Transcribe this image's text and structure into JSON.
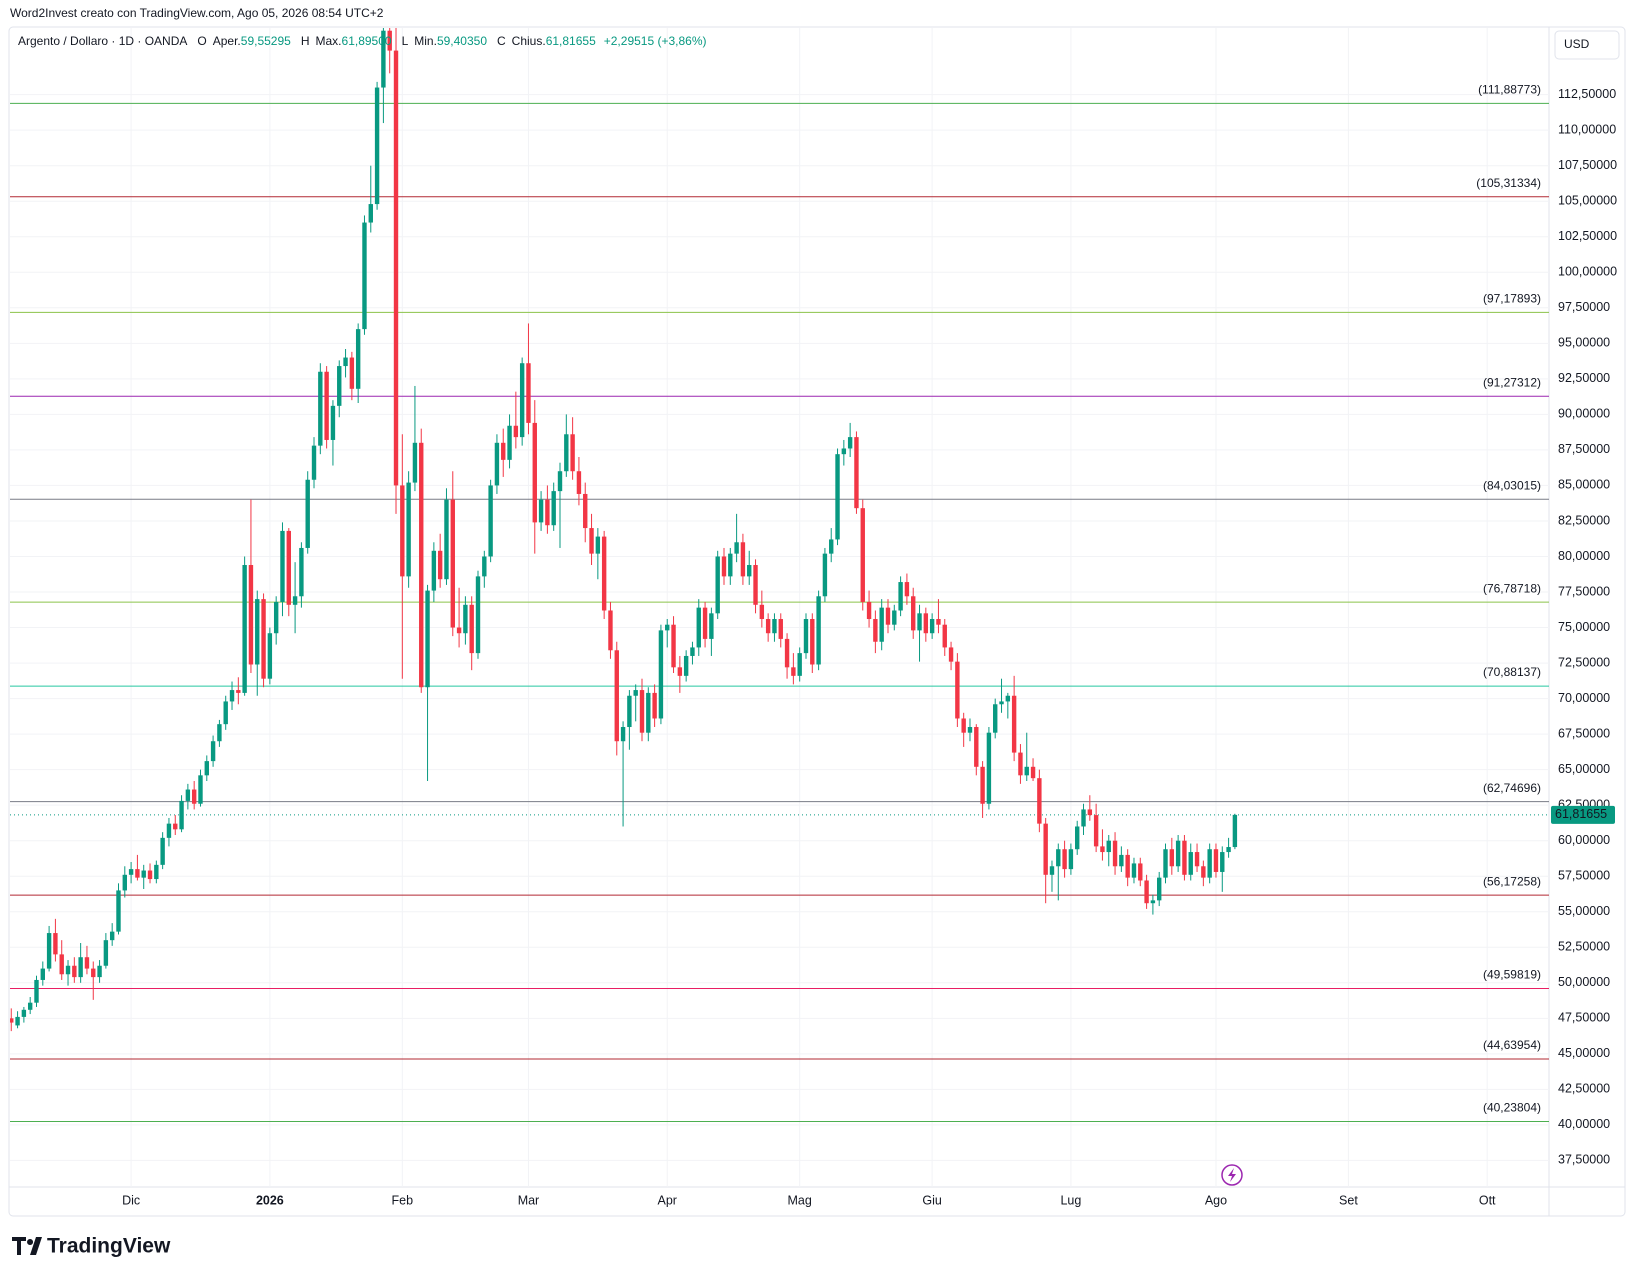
{
  "header": {
    "credit": "Word2Invest creato con TradingView.com, Ago 05, 2026 08:54 UTC+2",
    "symbol": "Argento / Dollaro · 1D · OANDA",
    "items": [
      {
        "key": "O",
        "name": "Aper.",
        "value": "59,55295"
      },
      {
        "key": "H",
        "name": "Max.",
        "value": "61,89500"
      },
      {
        "key": "L",
        "name": "Min.",
        "value": "59,40350"
      },
      {
        "key": "C",
        "name": "Chius.",
        "value": "61,81655"
      }
    ],
    "change": "+2,29515 (+3,86%)",
    "currency": "USD",
    "brand": "TradingView"
  },
  "chart_data": {
    "type": "candlestick",
    "up_color": "#089981",
    "down_color": "#f23645",
    "grid": true,
    "xlim": [
      -0.2,
      243.8
    ],
    "ylim": [
      35.63,
      117.19
    ],
    "xticks": [
      {
        "value": 19,
        "label": "Dic"
      },
      {
        "value": 41,
        "label": "2026"
      },
      {
        "value": 62,
        "label": "Feb"
      },
      {
        "value": 82,
        "label": "Mar"
      },
      {
        "value": 104,
        "label": "Apr"
      },
      {
        "value": 125,
        "label": "Mag"
      },
      {
        "value": 146,
        "label": "Giu"
      },
      {
        "value": 168,
        "label": "Lug"
      },
      {
        "value": 191,
        "label": "Ago"
      },
      {
        "value": 212,
        "label": "Set"
      },
      {
        "value": 234,
        "label": "Ott"
      }
    ],
    "yticks": [
      {
        "value": 37.5,
        "label": "37,50000"
      },
      {
        "value": 40,
        "label": "40,00000"
      },
      {
        "value": 42.5,
        "label": "42,50000"
      },
      {
        "value": 45,
        "label": "45,00000"
      },
      {
        "value": 47.5,
        "label": "47,50000"
      },
      {
        "value": 50,
        "label": "50,00000"
      },
      {
        "value": 52.5,
        "label": "52,50000"
      },
      {
        "value": 55,
        "label": "55,00000"
      },
      {
        "value": 57.5,
        "label": "57,50000"
      },
      {
        "value": 60,
        "label": "60,00000"
      },
      {
        "value": 62.5,
        "label": "62,50000"
      },
      {
        "value": 65,
        "label": "65,00000"
      },
      {
        "value": 67.5,
        "label": "67,50000"
      },
      {
        "value": 70,
        "label": "70,00000"
      },
      {
        "value": 72.5,
        "label": "72,50000"
      },
      {
        "value": 75,
        "label": "75,00000"
      },
      {
        "value": 77.5,
        "label": "77,50000"
      },
      {
        "value": 80,
        "label": "80,00000"
      },
      {
        "value": 82.5,
        "label": "82,50000"
      },
      {
        "value": 85,
        "label": "85,00000"
      },
      {
        "value": 87.5,
        "label": "87,50000"
      },
      {
        "value": 90,
        "label": "90,00000"
      },
      {
        "value": 92.5,
        "label": "92,50000"
      },
      {
        "value": 95,
        "label": "95,00000"
      },
      {
        "value": 97.5,
        "label": "97,50000"
      },
      {
        "value": 100,
        "label": "100,00000"
      },
      {
        "value": 102.5,
        "label": "102,50000"
      },
      {
        "value": 105,
        "label": "105,00000"
      },
      {
        "value": 107.5,
        "label": "107,50000"
      },
      {
        "value": 110,
        "label": "110,00000"
      },
      {
        "value": 112.5,
        "label": "112,50000"
      }
    ],
    "levels": [
      {
        "value": 111.88773,
        "label": "(111,88773)",
        "color": "#4caf50"
      },
      {
        "value": 105.31334,
        "label": "(105,31334)",
        "color": "#b22833"
      },
      {
        "value": 97.17893,
        "label": "(97,17893)",
        "color": "#8bc34a"
      },
      {
        "value": 91.27312,
        "label": "(91,27312)",
        "color": "#9c27b0"
      },
      {
        "value": 84.03015,
        "label": "(84,03015)",
        "color": "#787b86"
      },
      {
        "value": 76.78718,
        "label": "(76,78718)",
        "color": "#8bc34a"
      },
      {
        "value": 70.88137,
        "label": "(70,88137)",
        "color": "#26c6a0"
      },
      {
        "value": 62.74696,
        "label": "(62,74696)",
        "color": "#787b86"
      },
      {
        "value": 56.17258,
        "label": "(56,17258)",
        "color": "#b22833"
      },
      {
        "value": 49.59819,
        "label": "(49,59819)",
        "color": "#e91e63"
      },
      {
        "value": 44.63954,
        "label": "(44,63954)",
        "color": "#b22833"
      },
      {
        "value": 40.23804,
        "label": "(40,23804)",
        "color": "#4caf50"
      }
    ],
    "last_price": {
      "value": 61.81655,
      "label": "61,81655",
      "color": "#089981"
    },
    "candles": [
      [
        47.5,
        48.2,
        46.6,
        47.2
      ],
      [
        47.0,
        48.0,
        46.8,
        47.6
      ],
      [
        47.6,
        48.3,
        47.2,
        48.1
      ],
      [
        48.1,
        49.0,
        47.8,
        48.6
      ],
      [
        48.6,
        50.5,
        48.3,
        50.2
      ],
      [
        50.2,
        51.5,
        49.8,
        51.0
      ],
      [
        51.0,
        54.0,
        50.8,
        53.5
      ],
      [
        53.5,
        54.5,
        51.5,
        52.0
      ],
      [
        52.0,
        53.0,
        50.2,
        50.6
      ],
      [
        50.6,
        51.6,
        49.8,
        51.2
      ],
      [
        51.2,
        51.8,
        50.0,
        50.4
      ],
      [
        50.4,
        52.8,
        50.0,
        51.8
      ],
      [
        51.8,
        52.6,
        50.6,
        51.0
      ],
      [
        51.0,
        51.5,
        48.8,
        50.4
      ],
      [
        50.4,
        51.6,
        50.0,
        51.2
      ],
      [
        51.2,
        53.5,
        51.0,
        53.0
      ],
      [
        53.0,
        54.2,
        52.6,
        53.6
      ],
      [
        53.6,
        57.0,
        53.4,
        56.5
      ],
      [
        56.5,
        58.2,
        56.0,
        57.6
      ],
      [
        57.6,
        58.5,
        57.0,
        58.0
      ],
      [
        58.0,
        59.0,
        57.2,
        57.4
      ],
      [
        57.4,
        58.3,
        56.6,
        57.9
      ],
      [
        57.9,
        58.4,
        57.0,
        57.3
      ],
      [
        57.3,
        58.6,
        57.0,
        58.3
      ],
      [
        58.3,
        60.6,
        58.0,
        60.2
      ],
      [
        60.2,
        61.6,
        59.6,
        61.2
      ],
      [
        61.2,
        61.8,
        60.4,
        60.8
      ],
      [
        60.8,
        63.2,
        60.6,
        62.8
      ],
      [
        62.8,
        64.0,
        62.2,
        63.6
      ],
      [
        63.6,
        64.2,
        62.2,
        62.6
      ],
      [
        62.6,
        65.0,
        62.4,
        64.6
      ],
      [
        64.6,
        66.0,
        64.2,
        65.6
      ],
      [
        65.6,
        67.4,
        65.2,
        67.0
      ],
      [
        67.0,
        68.5,
        66.6,
        68.2
      ],
      [
        68.2,
        70.2,
        67.8,
        69.8
      ],
      [
        69.8,
        71.2,
        69.2,
        70.6
      ],
      [
        70.6,
        71.5,
        69.6,
        70.4
      ],
      [
        70.4,
        80.0,
        70.2,
        79.4
      ],
      [
        79.4,
        84.0,
        71.8,
        72.4
      ],
      [
        72.4,
        77.6,
        70.2,
        77.0
      ],
      [
        77.0,
        77.4,
        70.8,
        71.4
      ],
      [
        71.4,
        75.0,
        71.0,
        74.6
      ],
      [
        74.6,
        77.2,
        73.8,
        76.8
      ],
      [
        76.8,
        82.4,
        75.8,
        81.8
      ],
      [
        81.8,
        82.0,
        75.8,
        76.6
      ],
      [
        76.6,
        79.6,
        74.6,
        77.2
      ],
      [
        77.2,
        81.0,
        76.4,
        80.6
      ],
      [
        80.6,
        86.0,
        80.2,
        85.4
      ],
      [
        85.4,
        88.4,
        84.8,
        87.8
      ],
      [
        87.8,
        93.6,
        87.2,
        93.0
      ],
      [
        93.0,
        93.4,
        87.6,
        88.2
      ],
      [
        88.2,
        91.0,
        86.4,
        90.6
      ],
      [
        90.6,
        93.8,
        89.8,
        93.4
      ],
      [
        93.4,
        94.6,
        92.6,
        94.0
      ],
      [
        94.0,
        94.4,
        91.0,
        91.8
      ],
      [
        91.8,
        96.4,
        90.8,
        96.0
      ],
      [
        96.0,
        104.0,
        95.6,
        103.5
      ],
      [
        103.5,
        107.5,
        102.8,
        104.8
      ],
      [
        104.8,
        113.4,
        104.4,
        113.0
      ],
      [
        113.0,
        118.5,
        110.5,
        117.0
      ],
      [
        117.0,
        121.0,
        114.0,
        115.6
      ],
      [
        115.6,
        120.5,
        83.0,
        85.0
      ],
      [
        85.0,
        88.6,
        71.4,
        78.6
      ],
      [
        78.6,
        86.0,
        77.8,
        85.2
      ],
      [
        85.2,
        92.0,
        84.6,
        88.0
      ],
      [
        88.0,
        89.0,
        70.4,
        70.8
      ],
      [
        70.8,
        78.0,
        64.2,
        77.6
      ],
      [
        77.6,
        81.0,
        76.8,
        80.4
      ],
      [
        80.4,
        81.6,
        77.8,
        78.4
      ],
      [
        78.4,
        84.8,
        78.0,
        84.0
      ],
      [
        84.0,
        86.0,
        74.4,
        75.0
      ],
      [
        75.0,
        77.8,
        73.6,
        74.6
      ],
      [
        74.6,
        77.2,
        73.8,
        76.6
      ],
      [
        76.6,
        77.2,
        72.0,
        73.2
      ],
      [
        73.2,
        79.0,
        72.8,
        78.6
      ],
      [
        78.6,
        80.4,
        77.8,
        80.0
      ],
      [
        80.0,
        85.4,
        79.6,
        85.0
      ],
      [
        85.0,
        88.6,
        84.4,
        88.0
      ],
      [
        88.0,
        89.0,
        85.6,
        86.8
      ],
      [
        86.8,
        90.0,
        86.2,
        89.2
      ],
      [
        89.2,
        91.6,
        87.6,
        88.4
      ],
      [
        88.4,
        94.0,
        87.8,
        93.6
      ],
      [
        93.6,
        96.4,
        88.6,
        89.4
      ],
      [
        89.4,
        91.0,
        80.2,
        82.4
      ],
      [
        82.4,
        84.6,
        81.8,
        84.0
      ],
      [
        84.0,
        85.0,
        81.6,
        82.2
      ],
      [
        82.2,
        85.2,
        81.8,
        84.6
      ],
      [
        84.6,
        86.6,
        80.6,
        86.0
      ],
      [
        86.0,
        90.0,
        85.6,
        88.6
      ],
      [
        88.6,
        89.8,
        85.4,
        86.0
      ],
      [
        86.0,
        87.0,
        83.6,
        84.4
      ],
      [
        84.4,
        85.2,
        81.0,
        82.0
      ],
      [
        82.0,
        83.0,
        79.4,
        80.2
      ],
      [
        80.2,
        82.0,
        78.4,
        81.4
      ],
      [
        81.4,
        81.8,
        75.6,
        76.2
      ],
      [
        76.2,
        76.8,
        72.8,
        73.4
      ],
      [
        73.4,
        74.0,
        66.0,
        67.0
      ],
      [
        67.0,
        68.4,
        61.0,
        68.0
      ],
      [
        68.0,
        70.6,
        66.4,
        70.2
      ],
      [
        70.2,
        71.0,
        68.4,
        70.6
      ],
      [
        70.6,
        71.4,
        67.0,
        67.6
      ],
      [
        67.6,
        70.8,
        67.0,
        70.4
      ],
      [
        70.4,
        71.0,
        68.0,
        68.6
      ],
      [
        68.6,
        75.2,
        68.2,
        74.8
      ],
      [
        74.8,
        75.6,
        73.6,
        75.2
      ],
      [
        75.2,
        75.8,
        71.8,
        72.2
      ],
      [
        72.2,
        73.0,
        70.4,
        71.6
      ],
      [
        71.6,
        73.4,
        71.2,
        73.0
      ],
      [
        73.0,
        74.0,
        72.4,
        73.6
      ],
      [
        73.6,
        77.0,
        73.0,
        76.4
      ],
      [
        76.4,
        76.8,
        73.6,
        74.2
      ],
      [
        74.2,
        76.4,
        73.0,
        76.0
      ],
      [
        76.0,
        80.4,
        75.6,
        80.0
      ],
      [
        80.0,
        80.6,
        78.0,
        78.6
      ],
      [
        78.6,
        80.6,
        78.0,
        80.2
      ],
      [
        80.2,
        83.0,
        79.6,
        81.0
      ],
      [
        81.0,
        81.6,
        78.0,
        78.6
      ],
      [
        78.6,
        80.4,
        78.0,
        79.4
      ],
      [
        79.4,
        79.8,
        76.0,
        76.6
      ],
      [
        76.6,
        77.6,
        75.0,
        75.6
      ],
      [
        75.6,
        76.0,
        74.0,
        74.6
      ],
      [
        74.6,
        76.0,
        74.0,
        75.6
      ],
      [
        75.6,
        76.0,
        73.6,
        74.2
      ],
      [
        74.2,
        74.6,
        71.4,
        72.2
      ],
      [
        72.2,
        73.2,
        71.0,
        71.6
      ],
      [
        71.6,
        73.6,
        71.2,
        73.2
      ],
      [
        73.2,
        76.0,
        72.8,
        75.6
      ],
      [
        75.6,
        76.0,
        71.8,
        72.4
      ],
      [
        72.4,
        77.6,
        72.0,
        77.2
      ],
      [
        77.2,
        80.6,
        76.8,
        80.2
      ],
      [
        80.2,
        82.0,
        79.6,
        81.2
      ],
      [
        81.2,
        87.6,
        80.8,
        87.2
      ],
      [
        87.2,
        88.2,
        86.4,
        87.6
      ],
      [
        87.6,
        89.4,
        87.0,
        88.4
      ],
      [
        88.4,
        88.8,
        83.0,
        83.4
      ],
      [
        83.4,
        84.0,
        76.2,
        76.8
      ],
      [
        76.8,
        77.6,
        75.0,
        75.6
      ],
      [
        75.6,
        76.2,
        73.2,
        74.0
      ],
      [
        74.0,
        77.0,
        73.4,
        76.4
      ],
      [
        76.4,
        77.0,
        74.6,
        75.2
      ],
      [
        75.2,
        76.6,
        74.8,
        76.2
      ],
      [
        76.2,
        78.6,
        75.8,
        78.2
      ],
      [
        78.2,
        78.8,
        76.6,
        77.2
      ],
      [
        77.2,
        77.8,
        74.2,
        74.8
      ],
      [
        74.8,
        76.6,
        72.6,
        76.0
      ],
      [
        76.0,
        76.4,
        74.0,
        74.6
      ],
      [
        74.6,
        76.0,
        74.2,
        75.6
      ],
      [
        75.6,
        77.0,
        74.6,
        75.2
      ],
      [
        75.2,
        75.6,
        73.0,
        73.6
      ],
      [
        73.6,
        74.0,
        72.0,
        72.6
      ],
      [
        72.6,
        73.2,
        68.0,
        68.6
      ],
      [
        68.6,
        69.0,
        66.6,
        67.6
      ],
      [
        67.6,
        68.6,
        67.0,
        68.0
      ],
      [
        68.0,
        68.2,
        64.6,
        65.2
      ],
      [
        65.2,
        65.6,
        61.6,
        62.6
      ],
      [
        62.6,
        68.0,
        62.2,
        67.6
      ],
      [
        67.6,
        70.0,
        67.2,
        69.6
      ],
      [
        69.6,
        71.4,
        69.0,
        69.8
      ],
      [
        69.8,
        70.4,
        68.6,
        70.2
      ],
      [
        70.2,
        71.6,
        65.6,
        66.2
      ],
      [
        66.2,
        66.8,
        64.0,
        64.6
      ],
      [
        64.6,
        67.6,
        64.2,
        65.2
      ],
      [
        65.2,
        65.8,
        64.2,
        64.4
      ],
      [
        64.4,
        65.0,
        60.6,
        61.2
      ],
      [
        61.2,
        61.6,
        55.6,
        57.6
      ],
      [
        57.6,
        58.6,
        56.4,
        58.2
      ],
      [
        58.2,
        59.8,
        55.8,
        59.4
      ],
      [
        59.4,
        60.0,
        57.4,
        58.0
      ],
      [
        58.0,
        59.8,
        57.6,
        59.4
      ],
      [
        59.4,
        61.4,
        59.0,
        61.0
      ],
      [
        61.0,
        62.6,
        60.4,
        62.2
      ],
      [
        62.2,
        63.2,
        61.4,
        61.8
      ],
      [
        61.8,
        62.6,
        59.2,
        59.6
      ],
      [
        59.6,
        60.8,
        58.6,
        59.2
      ],
      [
        59.2,
        60.4,
        58.2,
        60.0
      ],
      [
        60.0,
        60.6,
        57.6,
        58.2
      ],
      [
        58.2,
        59.6,
        57.8,
        59.0
      ],
      [
        59.0,
        59.4,
        56.8,
        57.4
      ],
      [
        57.4,
        58.8,
        57.0,
        58.4
      ],
      [
        58.4,
        58.8,
        56.8,
        57.2
      ],
      [
        57.2,
        57.6,
        55.2,
        55.6
      ],
      [
        55.6,
        56.2,
        54.8,
        55.8
      ],
      [
        55.8,
        57.8,
        55.4,
        57.4
      ],
      [
        57.4,
        59.8,
        57.0,
        59.4
      ],
      [
        59.4,
        60.2,
        57.6,
        58.2
      ],
      [
        58.2,
        60.4,
        57.8,
        60.0
      ],
      [
        60.0,
        60.4,
        57.2,
        57.6
      ],
      [
        57.6,
        59.8,
        57.2,
        59.2
      ],
      [
        59.2,
        59.8,
        57.8,
        58.2
      ],
      [
        58.2,
        58.6,
        56.8,
        57.4
      ],
      [
        57.4,
        59.8,
        57.0,
        59.4
      ],
      [
        59.4,
        59.8,
        57.4,
        57.8
      ],
      [
        57.8,
        59.6,
        56.4,
        59.2
      ],
      [
        59.2,
        60.2,
        58.8,
        59.55295
      ],
      [
        59.55295,
        61.895,
        59.4035,
        61.81655
      ]
    ]
  }
}
